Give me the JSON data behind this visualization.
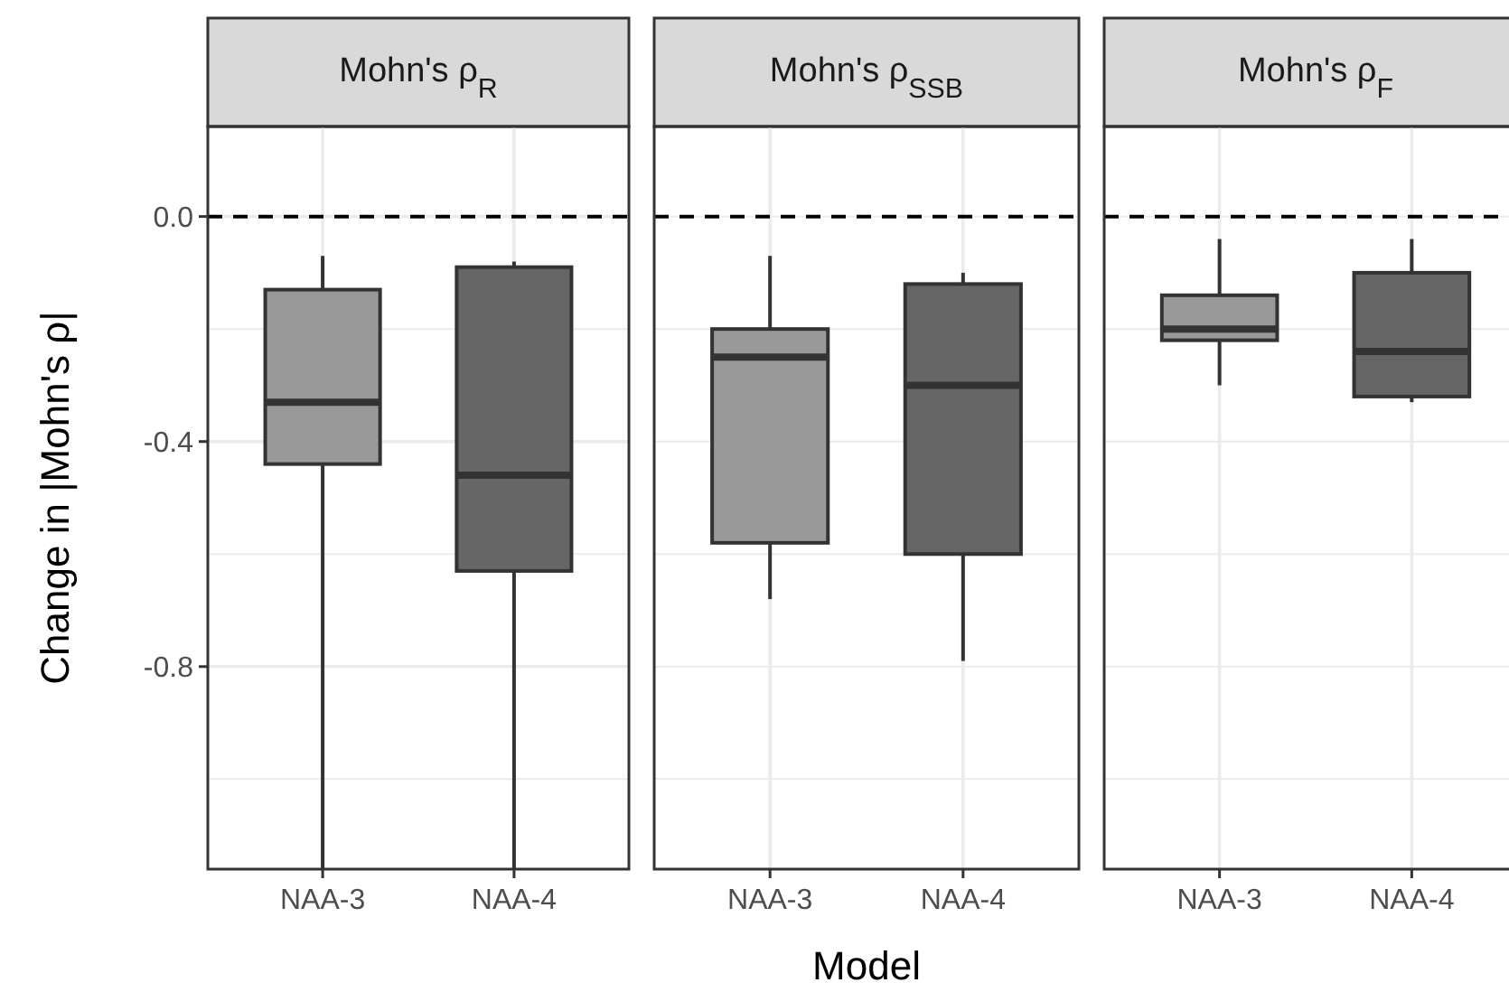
{
  "chart_data": [
    {
      "type": "box",
      "title": "Mohn's ρ$_{R}$",
      "ylabel": "Change in |Mohn's ρ|",
      "categories": [
        "NAA-3",
        "NAA-4"
      ],
      "colors": [
        "#999999",
        "#666666"
      ],
      "boxes": [
        {
          "low": -1.16,
          "q1": -0.44,
          "median": -0.33,
          "q3": -0.13,
          "high": -0.07
        },
        {
          "low": -1.16,
          "q1": -0.63,
          "median": -0.46,
          "q3": -0.09,
          "high": -0.08
        }
      ],
      "ylim": [
        -1.16,
        0.16
      ],
      "yticks": [
        {
          "value": -1.0,
          "label": null
        },
        -0.8,
        {
          "value": -0.6,
          "label": null
        },
        -0.4,
        {
          "value": -0.2,
          "label": null
        },
        {
          "value": 0,
          "label": "0.0"
        }
      ],
      "grid": true,
      "ref_lines": [
        {
          "axis": "y",
          "value": 0,
          "line_style": "dashed",
          "color": "#000000"
        }
      ]
    },
    {
      "type": "box",
      "title": "Mohn's ρ$_{SSB}$",
      "xlabel": "Model",
      "categories": [
        "NAA-3",
        "NAA-4"
      ],
      "colors": [
        "#999999",
        "#666666"
      ],
      "boxes": [
        {
          "low": -0.68,
          "q1": -0.58,
          "median": -0.25,
          "q3": -0.2,
          "high": -0.07
        },
        {
          "low": -0.79,
          "q1": -0.6,
          "median": -0.3,
          "q3": -0.12,
          "high": -0.1
        }
      ],
      "ylim": [
        -1.16,
        0.16
      ],
      "yticks": [
        {
          "value": -1.0,
          "label": null
        },
        {
          "value": -0.8,
          "label": null
        },
        {
          "value": -0.6,
          "label": null
        },
        {
          "value": -0.4,
          "label": null
        },
        {
          "value": -0.2,
          "label": null
        },
        {
          "value": 0,
          "label": null
        }
      ],
      "grid": true,
      "tick_labels": "x",
      "ref_lines": [
        {
          "axis": "y",
          "value": 0,
          "line_style": "dashed",
          "color": "#000000"
        }
      ]
    },
    {
      "type": "box",
      "title": "Mohn's ρ$_{F}$",
      "categories": [
        "NAA-3",
        "NAA-4"
      ],
      "colors": [
        "#999999",
        "#666666"
      ],
      "boxes": [
        {
          "low": -0.3,
          "q1": -0.22,
          "median": -0.2,
          "q3": -0.14,
          "high": -0.04
        },
        {
          "low": -0.33,
          "q1": -0.32,
          "median": -0.24,
          "q3": -0.1,
          "high": -0.04
        }
      ],
      "ylim": [
        -1.16,
        0.16
      ],
      "yticks": [
        {
          "value": -1.0,
          "label": null
        },
        {
          "value": -0.8,
          "label": null
        },
        {
          "value": -0.6,
          "label": null
        },
        {
          "value": -0.4,
          "label": null
        },
        {
          "value": -0.2,
          "label": null
        },
        {
          "value": 0,
          "label": null
        }
      ],
      "grid": true,
      "tick_labels": "x",
      "ref_lines": [
        {
          "axis": "y",
          "value": 0,
          "line_style": "dashed",
          "color": "#000000"
        }
      ]
    }
  ]
}
